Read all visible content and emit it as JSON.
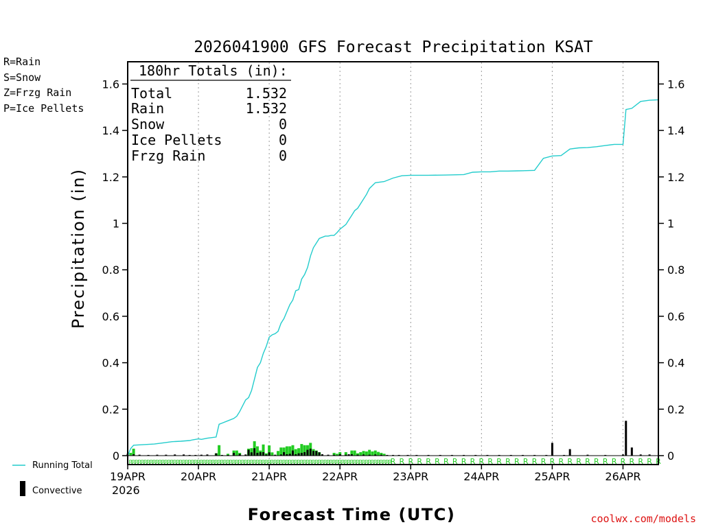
{
  "chart_data": {
    "type": "bar+line",
    "title": "2026041900 GFS Forecast Precipitation KSAT",
    "xlabel": "Forecast Time (UTC)",
    "ylabel": "Precipitation (in)",
    "ylim": [
      0,
      1.68
    ],
    "yticks": [
      "0",
      "0.2",
      "0.4",
      "0.6",
      "0.8",
      "1",
      "1.2",
      "1.4",
      "1.6"
    ],
    "ytick_values": [
      0,
      0.2,
      0.4,
      0.6,
      0.8,
      1.0,
      1.2,
      1.4,
      1.6
    ],
    "xlim_hours": [
      0,
      180
    ],
    "xticks": [
      "19APR",
      "20APR",
      "21APR",
      "22APR",
      "23APR",
      "24APR",
      "25APR",
      "26APR"
    ],
    "x_year_label": "2026",
    "legend_types": [
      {
        "label": "R=Rain",
        "color": "#22cc22"
      },
      {
        "label": "S=Snow",
        "color": "#3355ee"
      },
      {
        "label": "Z=Frzg Rain",
        "color": "#ff8833"
      },
      {
        "label": "P=Ice Pellets",
        "color": "#ee2288"
      }
    ],
    "legend_series": [
      {
        "label": "Running Total",
        "color": "#22cccc"
      },
      {
        "label": "Convective",
        "color": "#000000"
      }
    ],
    "totals": {
      "header": "180hr Totals (in):",
      "rows": [
        {
          "label": "Total",
          "value": "1.532"
        },
        {
          "label": "Rain",
          "value": "1.532"
        },
        {
          "label": "Snow",
          "value": "0"
        },
        {
          "label": "Ice Pellets",
          "value": "0"
        },
        {
          "label": "Frzg Rain",
          "value": "0"
        }
      ]
    },
    "precip_type_marker": "R",
    "running_total": {
      "name": "Running Total",
      "hours": [
        0,
        1,
        2,
        9,
        12,
        15,
        18,
        21,
        22,
        24,
        25,
        27,
        30,
        31,
        32,
        34,
        36,
        37,
        38,
        39,
        40,
        41,
        42,
        43,
        44,
        45,
        46,
        47,
        48,
        49,
        50,
        51,
        52,
        53,
        54,
        55,
        56,
        57,
        58,
        59,
        60,
        61,
        62,
        63,
        64,
        65,
        66,
        67,
        68,
        69,
        70,
        71,
        72,
        73,
        74,
        75,
        76,
        77,
        78,
        79,
        80,
        81,
        82,
        84,
        87,
        90,
        93,
        96,
        102,
        108,
        114,
        117,
        120,
        123,
        126,
        129,
        132,
        135,
        138,
        141,
        144,
        147,
        150,
        153,
        156,
        159,
        162,
        165,
        168,
        169,
        171,
        174,
        177,
        180
      ],
      "values": [
        0.0,
        0.03,
        0.045,
        0.05,
        0.055,
        0.06,
        0.062,
        0.065,
        0.068,
        0.072,
        0.07,
        0.075,
        0.08,
        0.135,
        0.14,
        0.15,
        0.16,
        0.17,
        0.19,
        0.215,
        0.24,
        0.25,
        0.28,
        0.33,
        0.38,
        0.4,
        0.44,
        0.47,
        0.51,
        0.52,
        0.525,
        0.535,
        0.57,
        0.59,
        0.62,
        0.65,
        0.67,
        0.71,
        0.715,
        0.76,
        0.78,
        0.81,
        0.86,
        0.895,
        0.915,
        0.935,
        0.94,
        0.945,
        0.945,
        0.948,
        0.948,
        0.96,
        0.975,
        0.985,
        0.995,
        1.015,
        1.035,
        1.055,
        1.065,
        1.085,
        1.105,
        1.125,
        1.15,
        1.175,
        1.18,
        1.195,
        1.205,
        1.207,
        1.207,
        1.208,
        1.21,
        1.22,
        1.222,
        1.222,
        1.225,
        1.225,
        1.226,
        1.227,
        1.228,
        1.28,
        1.29,
        1.292,
        1.32,
        1.325,
        1.326,
        1.33,
        1.335,
        1.34,
        1.34,
        1.49,
        1.495,
        1.525,
        1.53,
        1.532
      ]
    },
    "rain_bars": {
      "name": "Rain",
      "hours": [
        1,
        2,
        30,
        31,
        34,
        36,
        37,
        38,
        41,
        42,
        43,
        44,
        45,
        46,
        47,
        48,
        49,
        51,
        52,
        53,
        54,
        55,
        56,
        57,
        58,
        59,
        60,
        61,
        62,
        63,
        64,
        65,
        70,
        71,
        72,
        74,
        76,
        77,
        78,
        79,
        80,
        81,
        82,
        83,
        84,
        85,
        86,
        87
      ],
      "values": [
        0.012,
        0.03,
        0.01,
        0.045,
        0.008,
        0.022,
        0.022,
        0.012,
        0.03,
        0.032,
        0.062,
        0.04,
        0.022,
        0.048,
        0.01,
        0.044,
        0.014,
        0.02,
        0.035,
        0.035,
        0.04,
        0.04,
        0.045,
        0.028,
        0.032,
        0.05,
        0.045,
        0.045,
        0.055,
        0.028,
        0.022,
        0.015,
        0.012,
        0.008,
        0.015,
        0.015,
        0.022,
        0.022,
        0.01,
        0.015,
        0.02,
        0.018,
        0.025,
        0.018,
        0.022,
        0.016,
        0.012,
        0.008
      ]
    },
    "convective_bars": {
      "name": "Convective",
      "hours": [
        0,
        2,
        4,
        7,
        10,
        13,
        16,
        19,
        21,
        23,
        25,
        27,
        30,
        32,
        34,
        36,
        38,
        40,
        41,
        42,
        43,
        44,
        45,
        46,
        47,
        48,
        50,
        52,
        53,
        54,
        55,
        56,
        57,
        58,
        59,
        60,
        61,
        62,
        63,
        64,
        65,
        66,
        68,
        70,
        72,
        74,
        75,
        76,
        78,
        80,
        82,
        84,
        86,
        88,
        90,
        92,
        95,
        98,
        102,
        106,
        110,
        114,
        118,
        122,
        126,
        130,
        134,
        138,
        142,
        144,
        148,
        150,
        156,
        162,
        168,
        169,
        171,
        174,
        177
      ],
      "values": [
        0.008,
        0.006,
        0.004,
        0.003,
        0.004,
        0.004,
        0.005,
        0.005,
        0.003,
        0.003,
        0.004,
        0.005,
        0.01,
        0.003,
        0.003,
        0.012,
        0.007,
        0.005,
        0.025,
        0.014,
        0.032,
        0.012,
        0.015,
        0.015,
        0.005,
        0.014,
        0.004,
        0.005,
        0.015,
        0.006,
        0.008,
        0.022,
        0.006,
        0.01,
        0.012,
        0.015,
        0.025,
        0.03,
        0.02,
        0.02,
        0.014,
        0.006,
        0.004,
        0.004,
        0.006,
        0.004,
        0.006,
        0.006,
        0.004,
        0.005,
        0.004,
        0.005,
        0.004,
        0.003,
        0.003,
        0.003,
        0.003,
        0.003,
        0.003,
        0.003,
        0.003,
        0.003,
        0.003,
        0.003,
        0.003,
        0.003,
        0.003,
        0.003,
        0.003,
        0.055,
        0.003,
        0.028,
        0.004,
        0.003,
        0.005,
        0.15,
        0.035,
        0.005,
        0.005
      ]
    }
  },
  "footer": {
    "credit": "coolwx.com/models"
  }
}
